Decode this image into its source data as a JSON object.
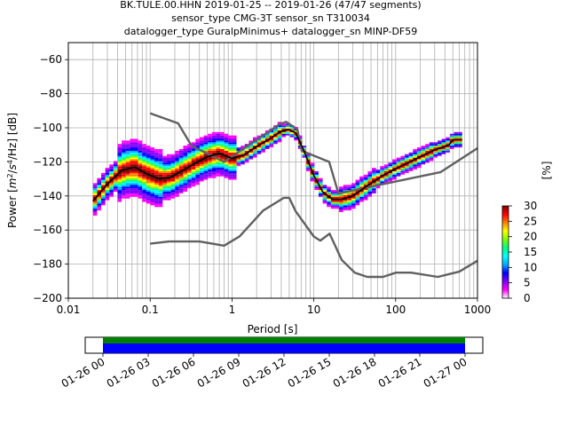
{
  "title": {
    "line1": "BK.TULE.00.HHN   2019-01-25 -- 2019-01-26  (47/47 segments)",
    "line2": "sensor_type CMG-3T sensor_sn T310034",
    "line3": "datalogger_type GuralpMinimus+ datalogger_sn MINP-DF59"
  },
  "chart_data": [
    {
      "type": "heatmap",
      "title": "",
      "xlabel": "Period [s]",
      "ylabel_parts": [
        "Power [",
        "m",
        "2",
        "/",
        "s",
        "4",
        "/Hz] [dB]"
      ],
      "xscale": "log",
      "xlim": [
        0.01,
        1000
      ],
      "ylim": [
        -200,
        -50
      ],
      "x_ticks": [
        {
          "value": 0.01,
          "label": "0.01"
        },
        {
          "value": 0.1,
          "label": "0.1"
        },
        {
          "value": 1,
          "label": "1"
        },
        {
          "value": 10,
          "label": "10"
        },
        {
          "value": 100,
          "label": "100"
        },
        {
          "value": 1000,
          "label": "1000"
        }
      ],
      "y_ticks": [
        -60,
        -80,
        -100,
        -120,
        -140,
        -160,
        -180,
        -200
      ],
      "grid": true,
      "data_period_range": [
        0.02,
        650
      ],
      "noise_models": {
        "new_high_noise_model": [
          [
            0.1,
            -91.5
          ],
          [
            0.22,
            -97.4
          ],
          [
            0.32,
            -110.5
          ],
          [
            0.8,
            -120
          ],
          [
            3.8,
            -98
          ],
          [
            4.6,
            -96.5
          ],
          [
            6.3,
            -101
          ],
          [
            7.1,
            -113.5
          ],
          [
            15.4,
            -120
          ],
          [
            20,
            -138.5
          ],
          [
            354.8,
            -126
          ],
          [
            1000,
            -112
          ]
        ],
        "new_low_noise_model": [
          [
            0.1,
            -168
          ],
          [
            0.17,
            -166.7
          ],
          [
            0.4,
            -166.7
          ],
          [
            0.8,
            -169.2
          ],
          [
            1.24,
            -163.7
          ],
          [
            2.4,
            -148.6
          ],
          [
            4.3,
            -141.1
          ],
          [
            5,
            -141.1
          ],
          [
            6,
            -149
          ],
          [
            10,
            -163.8
          ],
          [
            12,
            -166.2
          ],
          [
            15.6,
            -162.1
          ],
          [
            21.9,
            -177.5
          ],
          [
            31.6,
            -185
          ],
          [
            45,
            -187.5
          ],
          [
            70,
            -187.5
          ],
          [
            101,
            -185
          ],
          [
            154,
            -185
          ],
          [
            328,
            -187.5
          ],
          [
            600,
            -184.4
          ],
          [
            1000,
            -178
          ]
        ]
      },
      "median_curve": [
        [
          0.02,
          -143
        ],
        [
          0.03,
          -133
        ],
        [
          0.045,
          -125
        ],
        [
          0.065,
          -123
        ],
        [
          0.09,
          -127
        ],
        [
          0.13,
          -130
        ],
        [
          0.18,
          -129
        ],
        [
          0.25,
          -125
        ],
        [
          0.35,
          -121
        ],
        [
          0.5,
          -117
        ],
        [
          0.7,
          -115
        ],
        [
          1.0,
          -118
        ],
        [
          1.4,
          -116
        ],
        [
          2.0,
          -111
        ],
        [
          3.0,
          -106
        ],
        [
          4.0,
          -102
        ],
        [
          5.0,
          -101
        ],
        [
          6.0,
          -103
        ],
        [
          7.5,
          -113
        ],
        [
          10,
          -128
        ],
        [
          13,
          -138
        ],
        [
          17,
          -142
        ],
        [
          22,
          -142
        ],
        [
          30,
          -140
        ],
        [
          45,
          -134
        ],
        [
          70,
          -128
        ],
        [
          100,
          -124
        ],
        [
          150,
          -120
        ],
        [
          200,
          -117
        ],
        [
          300,
          -113
        ],
        [
          450,
          -110
        ],
        [
          500,
          -107
        ],
        [
          650,
          -107
        ]
      ],
      "colorbar": {
        "label": "[%]",
        "range": [
          0,
          30
        ],
        "ticks": [
          0,
          5,
          10,
          15,
          20,
          25,
          30
        ],
        "colormap": [
          "#ffffff",
          "#ff00ff",
          "#8000ff",
          "#0000ff",
          "#00aaff",
          "#00ffff",
          "#00ff80",
          "#80ff00",
          "#ffff00",
          "#ff8000",
          "#ff0000",
          "#800000"
        ]
      }
    },
    {
      "type": "timeline",
      "ticks": [
        "01-26 00",
        "01-26 03",
        "01-26 06",
        "01-26 09",
        "01-26 12",
        "01-26 15",
        "01-26 18",
        "01-26 21",
        "01-27 00"
      ],
      "coverage": [
        {
          "start": "01-26 00",
          "end": "01-27 00"
        }
      ],
      "bands": [
        {
          "name": "data",
          "color": "#008000"
        },
        {
          "name": "gaps",
          "color": "#0000ff"
        }
      ]
    }
  ]
}
